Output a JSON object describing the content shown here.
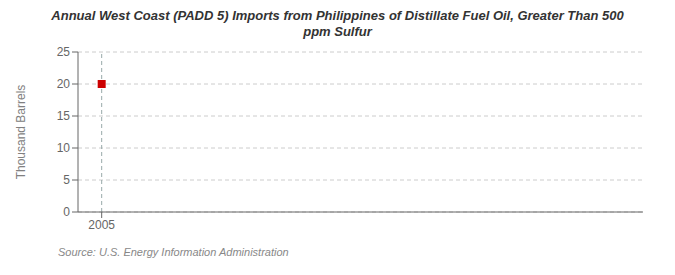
{
  "chart_data": {
    "type": "scatter",
    "title": "Annual West Coast (PADD 5) Imports from Philippines of Distillate Fuel Oil, Greater Than 500\nppm Sulfur",
    "y_label": "Thousand Barrels",
    "annotations": [
      "Source: U.S. Energy Information Administration"
    ],
    "x": [
      2005
    ],
    "values": [
      20
    ],
    "color": "#cc0000",
    "marker": "square",
    "xlim": [
      2004.3,
      2021
    ],
    "xticks": [
      2005
    ],
    "ylim": [
      0,
      25
    ],
    "yticks": [
      0,
      5,
      10,
      15,
      20,
      25
    ],
    "grid": true,
    "vline": 2005
  }
}
